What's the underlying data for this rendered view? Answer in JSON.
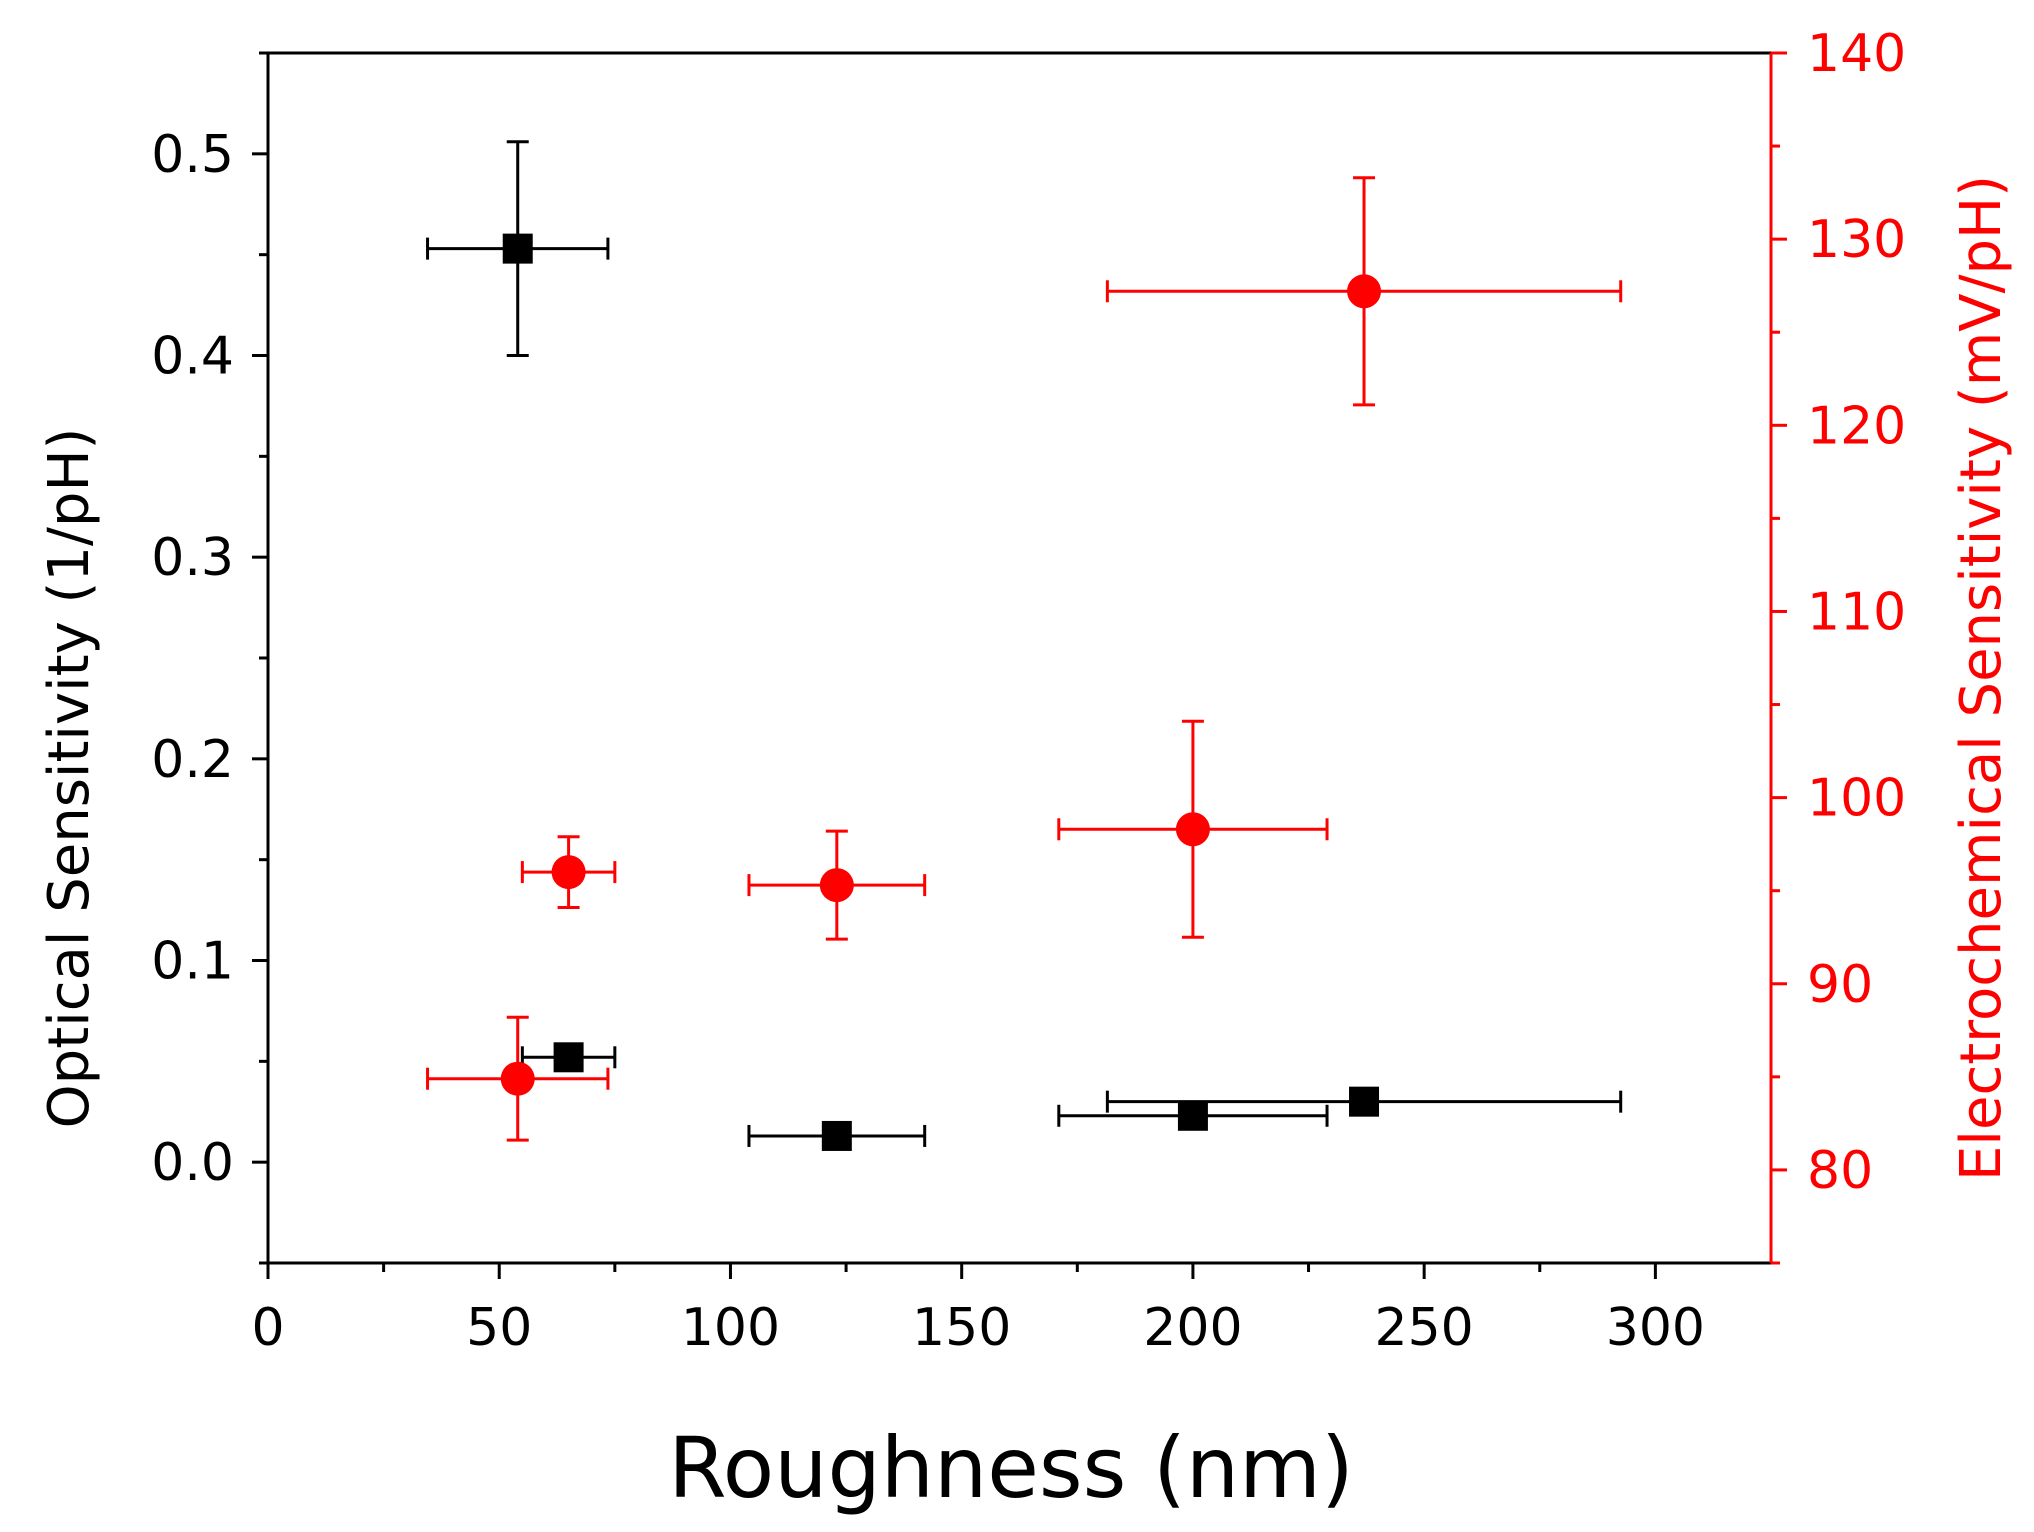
{
  "chart_data": {
    "type": "scatter",
    "title": "",
    "xlabel": "Roughness (nm)",
    "ylabel_left": "Optical Sensitivity (1/pH)",
    "ylabel_right": "Electrochemical Sensitivity (mV/pH)",
    "xlim": [
      0,
      325
    ],
    "ylim_left": [
      -0.05,
      0.55
    ],
    "ylim_right": [
      75,
      140
    ],
    "x_ticks": [
      0,
      50,
      100,
      150,
      200,
      250,
      300
    ],
    "y_left_ticks": [
      0.0,
      0.1,
      0.2,
      0.3,
      0.4,
      0.5
    ],
    "y_left_tick_labels": [
      "0.0",
      "0.1",
      "0.2",
      "0.3",
      "0.4",
      "0.5"
    ],
    "y_right_ticks": [
      80,
      90,
      100,
      110,
      120,
      130,
      140
    ],
    "legend": "none",
    "colors": {
      "optical": "#000000",
      "electrochemical": "#ff0000"
    },
    "series": [
      {
        "name": "Optical Sensitivity",
        "axis": "left",
        "marker": "square",
        "color": "#000000",
        "points": [
          {
            "x": 54,
            "y": 0.453,
            "xerr": 19.5,
            "yerr": 0.053
          },
          {
            "x": 65,
            "y": 0.052,
            "xerr": 10,
            "yerr": 0.004
          },
          {
            "x": 123,
            "y": 0.013,
            "xerr": 19,
            "yerr": 0.003
          },
          {
            "x": 200,
            "y": 0.023,
            "xerr": 29,
            "yerr": 0.003
          },
          {
            "x": 237,
            "y": 0.03,
            "xerr": 55.5,
            "yerr": 0.003
          }
        ]
      },
      {
        "name": "Electrochemical Sensitivity",
        "axis": "right",
        "marker": "circle",
        "color": "#ff0000",
        "points": [
          {
            "x": 54,
            "y": 84.9,
            "xerr": 19.5,
            "yerr": 3.3
          },
          {
            "x": 65,
            "y": 96.0,
            "xerr": 10,
            "yerr": 1.9
          },
          {
            "x": 123,
            "y": 95.3,
            "xerr": 19,
            "yerr": 2.9
          },
          {
            "x": 200,
            "y": 98.3,
            "xerr": 29,
            "yerr": 5.8
          },
          {
            "x": 237,
            "y": 127.2,
            "xerr": 55.5,
            "yerr": 6.1
          }
        ]
      }
    ]
  }
}
